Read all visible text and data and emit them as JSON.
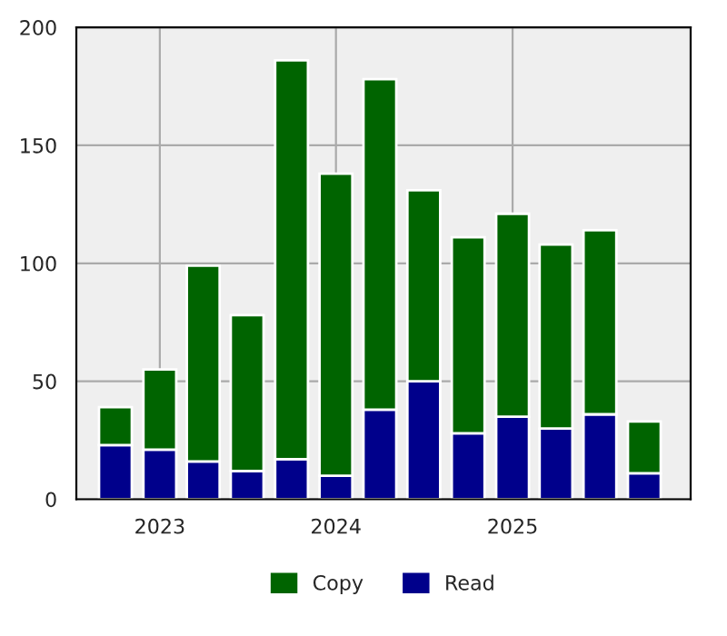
{
  "chart_data": {
    "type": "bar",
    "stacked": true,
    "x": [
      "2022-10",
      "2023-01",
      "2023-04",
      "2023-07",
      "2023-10",
      "2024-01",
      "2024-04",
      "2024-07",
      "2024-10",
      "2025-01",
      "2025-04",
      "2025-07",
      "2025-10"
    ],
    "series": [
      {
        "name": "Read",
        "color": "#00008b",
        "values": [
          23,
          21,
          16,
          12,
          17,
          10,
          38,
          50,
          28,
          35,
          30,
          36,
          11
        ]
      },
      {
        "name": "Copy",
        "color": "#006400",
        "values": [
          16,
          34,
          83,
          66,
          169,
          128,
          140,
          81,
          83,
          86,
          78,
          78,
          22
        ]
      }
    ],
    "xlim": [
      "2022-07-12",
      "2026-01-05"
    ],
    "xticks": [
      {
        "value": "2023-01",
        "label": "2023"
      },
      {
        "value": "2024-01",
        "label": "2024"
      },
      {
        "value": "2025-01",
        "label": "2025"
      }
    ],
    "ylim": [
      0,
      200
    ],
    "yticks": [
      0,
      50,
      100,
      150,
      200
    ],
    "grid": true,
    "legend": "bottom"
  }
}
